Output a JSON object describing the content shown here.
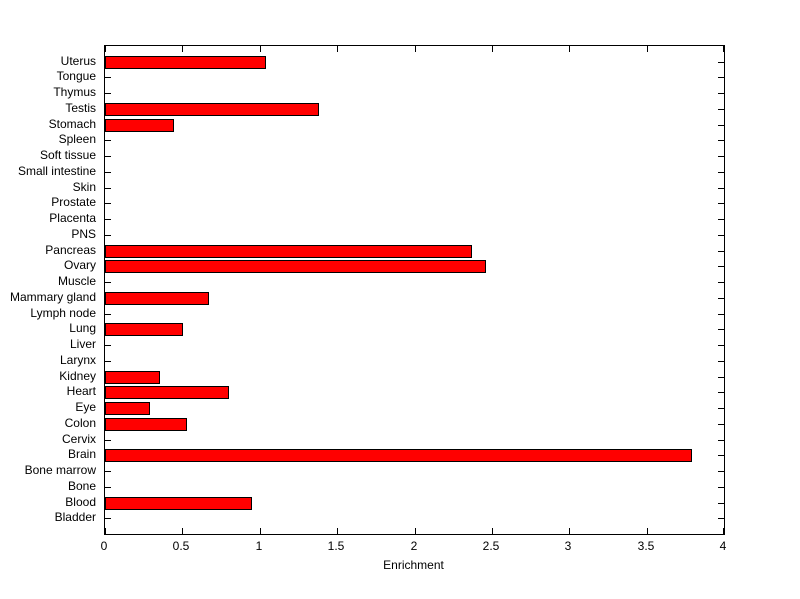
{
  "chart_data": {
    "type": "bar",
    "orientation": "horizontal",
    "title": "",
    "xlabel": "Enrichment",
    "ylabel": "",
    "xlim": [
      0,
      4
    ],
    "xticks": [
      "0",
      "0.5",
      "1",
      "1.5",
      "2",
      "2.5",
      "3",
      "3.5",
      "4"
    ],
    "grid": false,
    "legend": "none",
    "bar_color": "#FF0000",
    "bar_edge_color": "#000000",
    "axis_color": "#000000",
    "background_color": "#FFFFFF",
    "categories": [
      "Uterus",
      "Tongue",
      "Thymus",
      "Testis",
      "Stomach",
      "Spleen",
      "Soft tissue",
      "Small intestine",
      "Skin",
      "Prostate",
      "Placenta",
      "PNS",
      "Pancreas",
      "Ovary",
      "Muscle",
      "Mammary gland",
      "Lymph node",
      "Lung",
      "Liver",
      "Larynx",
      "Kidney",
      "Heart",
      "Eye",
      "Colon",
      "Cervix",
      "Brain",
      "Bone marrow",
      "Bone",
      "Blood",
      "Bladder"
    ],
    "values": [
      1.03,
      0,
      0,
      1.37,
      0.43,
      0,
      0,
      0,
      0,
      0,
      0,
      0,
      2.36,
      2.45,
      0,
      0.66,
      0,
      0.49,
      0,
      0,
      0.34,
      0.79,
      0.28,
      0.52,
      0,
      3.78,
      0,
      0,
      0.94,
      0
    ]
  }
}
